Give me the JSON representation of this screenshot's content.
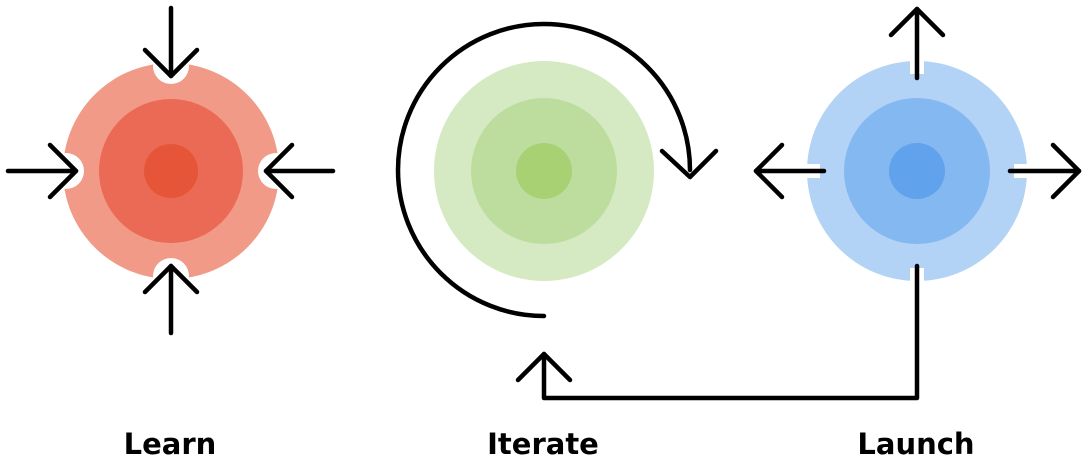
{
  "stages": [
    {
      "id": "learn",
      "label": "Learn",
      "icon": "converging-arrows-icon"
    },
    {
      "id": "iterate",
      "label": "Iterate",
      "icon": "cycle-arrow-icon"
    },
    {
      "id": "launch",
      "label": "Launch",
      "icon": "diverging-arrows-icon"
    }
  ],
  "colors": {
    "learn": [
      "#f19a87",
      "#eb6a55",
      "#e65538"
    ],
    "iterate": [
      "#d5eac3",
      "#bddd9e",
      "#a7d173"
    ],
    "launch": [
      "#b3d3f6",
      "#84b8f0",
      "#61a2ec"
    ],
    "arrow": "#000000"
  },
  "connector": {
    "from": "launch",
    "to": "iterate"
  }
}
